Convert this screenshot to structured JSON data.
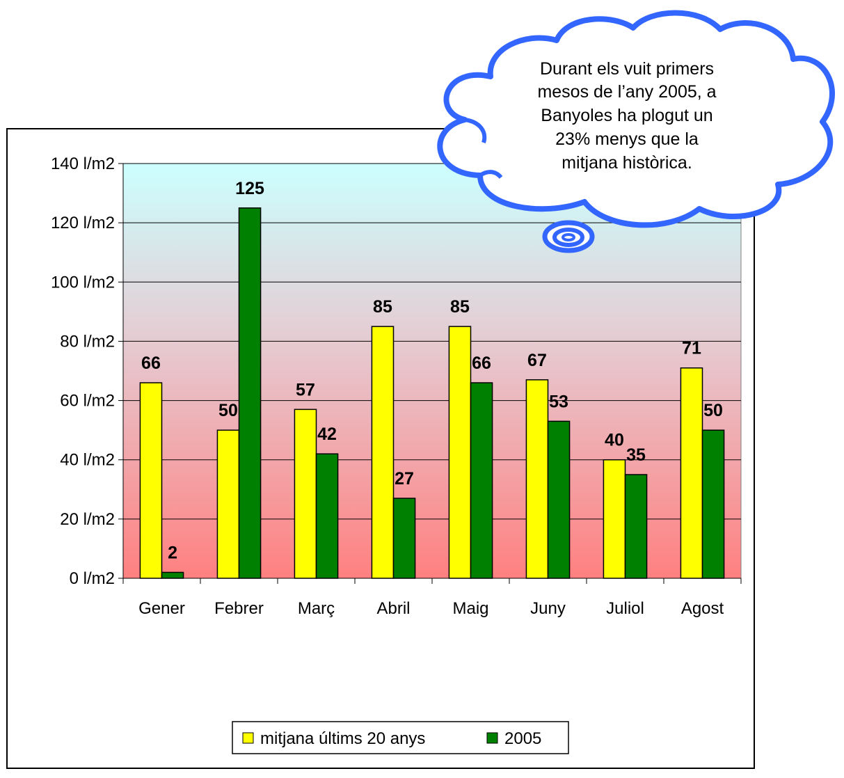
{
  "chart_data": {
    "type": "bar",
    "categories": [
      "Gener",
      "Febrer",
      "Març",
      "Abril",
      "Maig",
      "Juny",
      "Juliol",
      "Agost"
    ],
    "series": [
      {
        "name": "mitjana últims 20 anys",
        "values": [
          66,
          50,
          57,
          85,
          85,
          67,
          40,
          71
        ],
        "color": "#FFFF00"
      },
      {
        "name": "2005",
        "values": [
          2,
          125,
          42,
          27,
          66,
          53,
          35,
          50
        ],
        "color": "#008000"
      }
    ],
    "ylim": [
      0,
      140
    ],
    "yticks": [
      0,
      20,
      40,
      60,
      80,
      100,
      120,
      140
    ],
    "ytick_suffix": " l/m2",
    "grid": true,
    "legend_position": "bottom",
    "background_gradient": {
      "top": "#CCFFFF",
      "bottom": "#FF8080"
    }
  },
  "callout": {
    "lines": [
      "Durant els vuit primers",
      "mesos de l’any 2005, a",
      "Banyoles ha plogut un",
      "23% menys que la",
      "mitjana històrica."
    ],
    "border_color": "#3366FF"
  }
}
